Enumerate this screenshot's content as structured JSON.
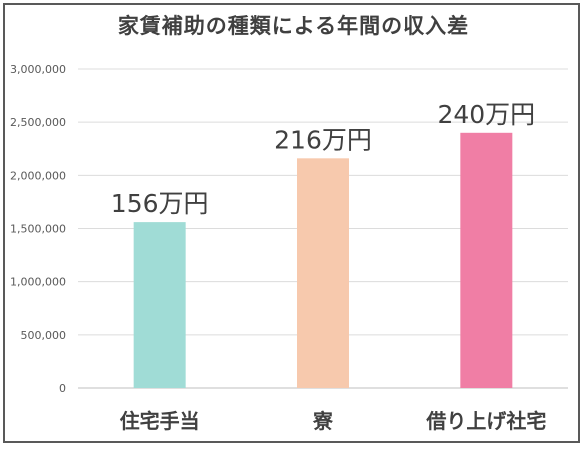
{
  "chart_data": {
    "type": "bar",
    "title": "家賃補助の種類による年間の収入差",
    "categories": [
      "住宅手当",
      "寮",
      "借り上げ社宅"
    ],
    "values": [
      1560000,
      2160000,
      2400000
    ],
    "data_labels": [
      "156万円",
      "216万円",
      "240万円"
    ],
    "bar_colors": [
      "#a0dcd6",
      "#f7c9ad",
      "#f07ea5"
    ],
    "y_ticks": [
      "0",
      "500,000",
      "1,000,000",
      "1,500,000",
      "2,000,000",
      "2,500,000",
      "3,000,000"
    ],
    "ylim": [
      0,
      3000000
    ],
    "grid": true,
    "legend": "none"
  }
}
